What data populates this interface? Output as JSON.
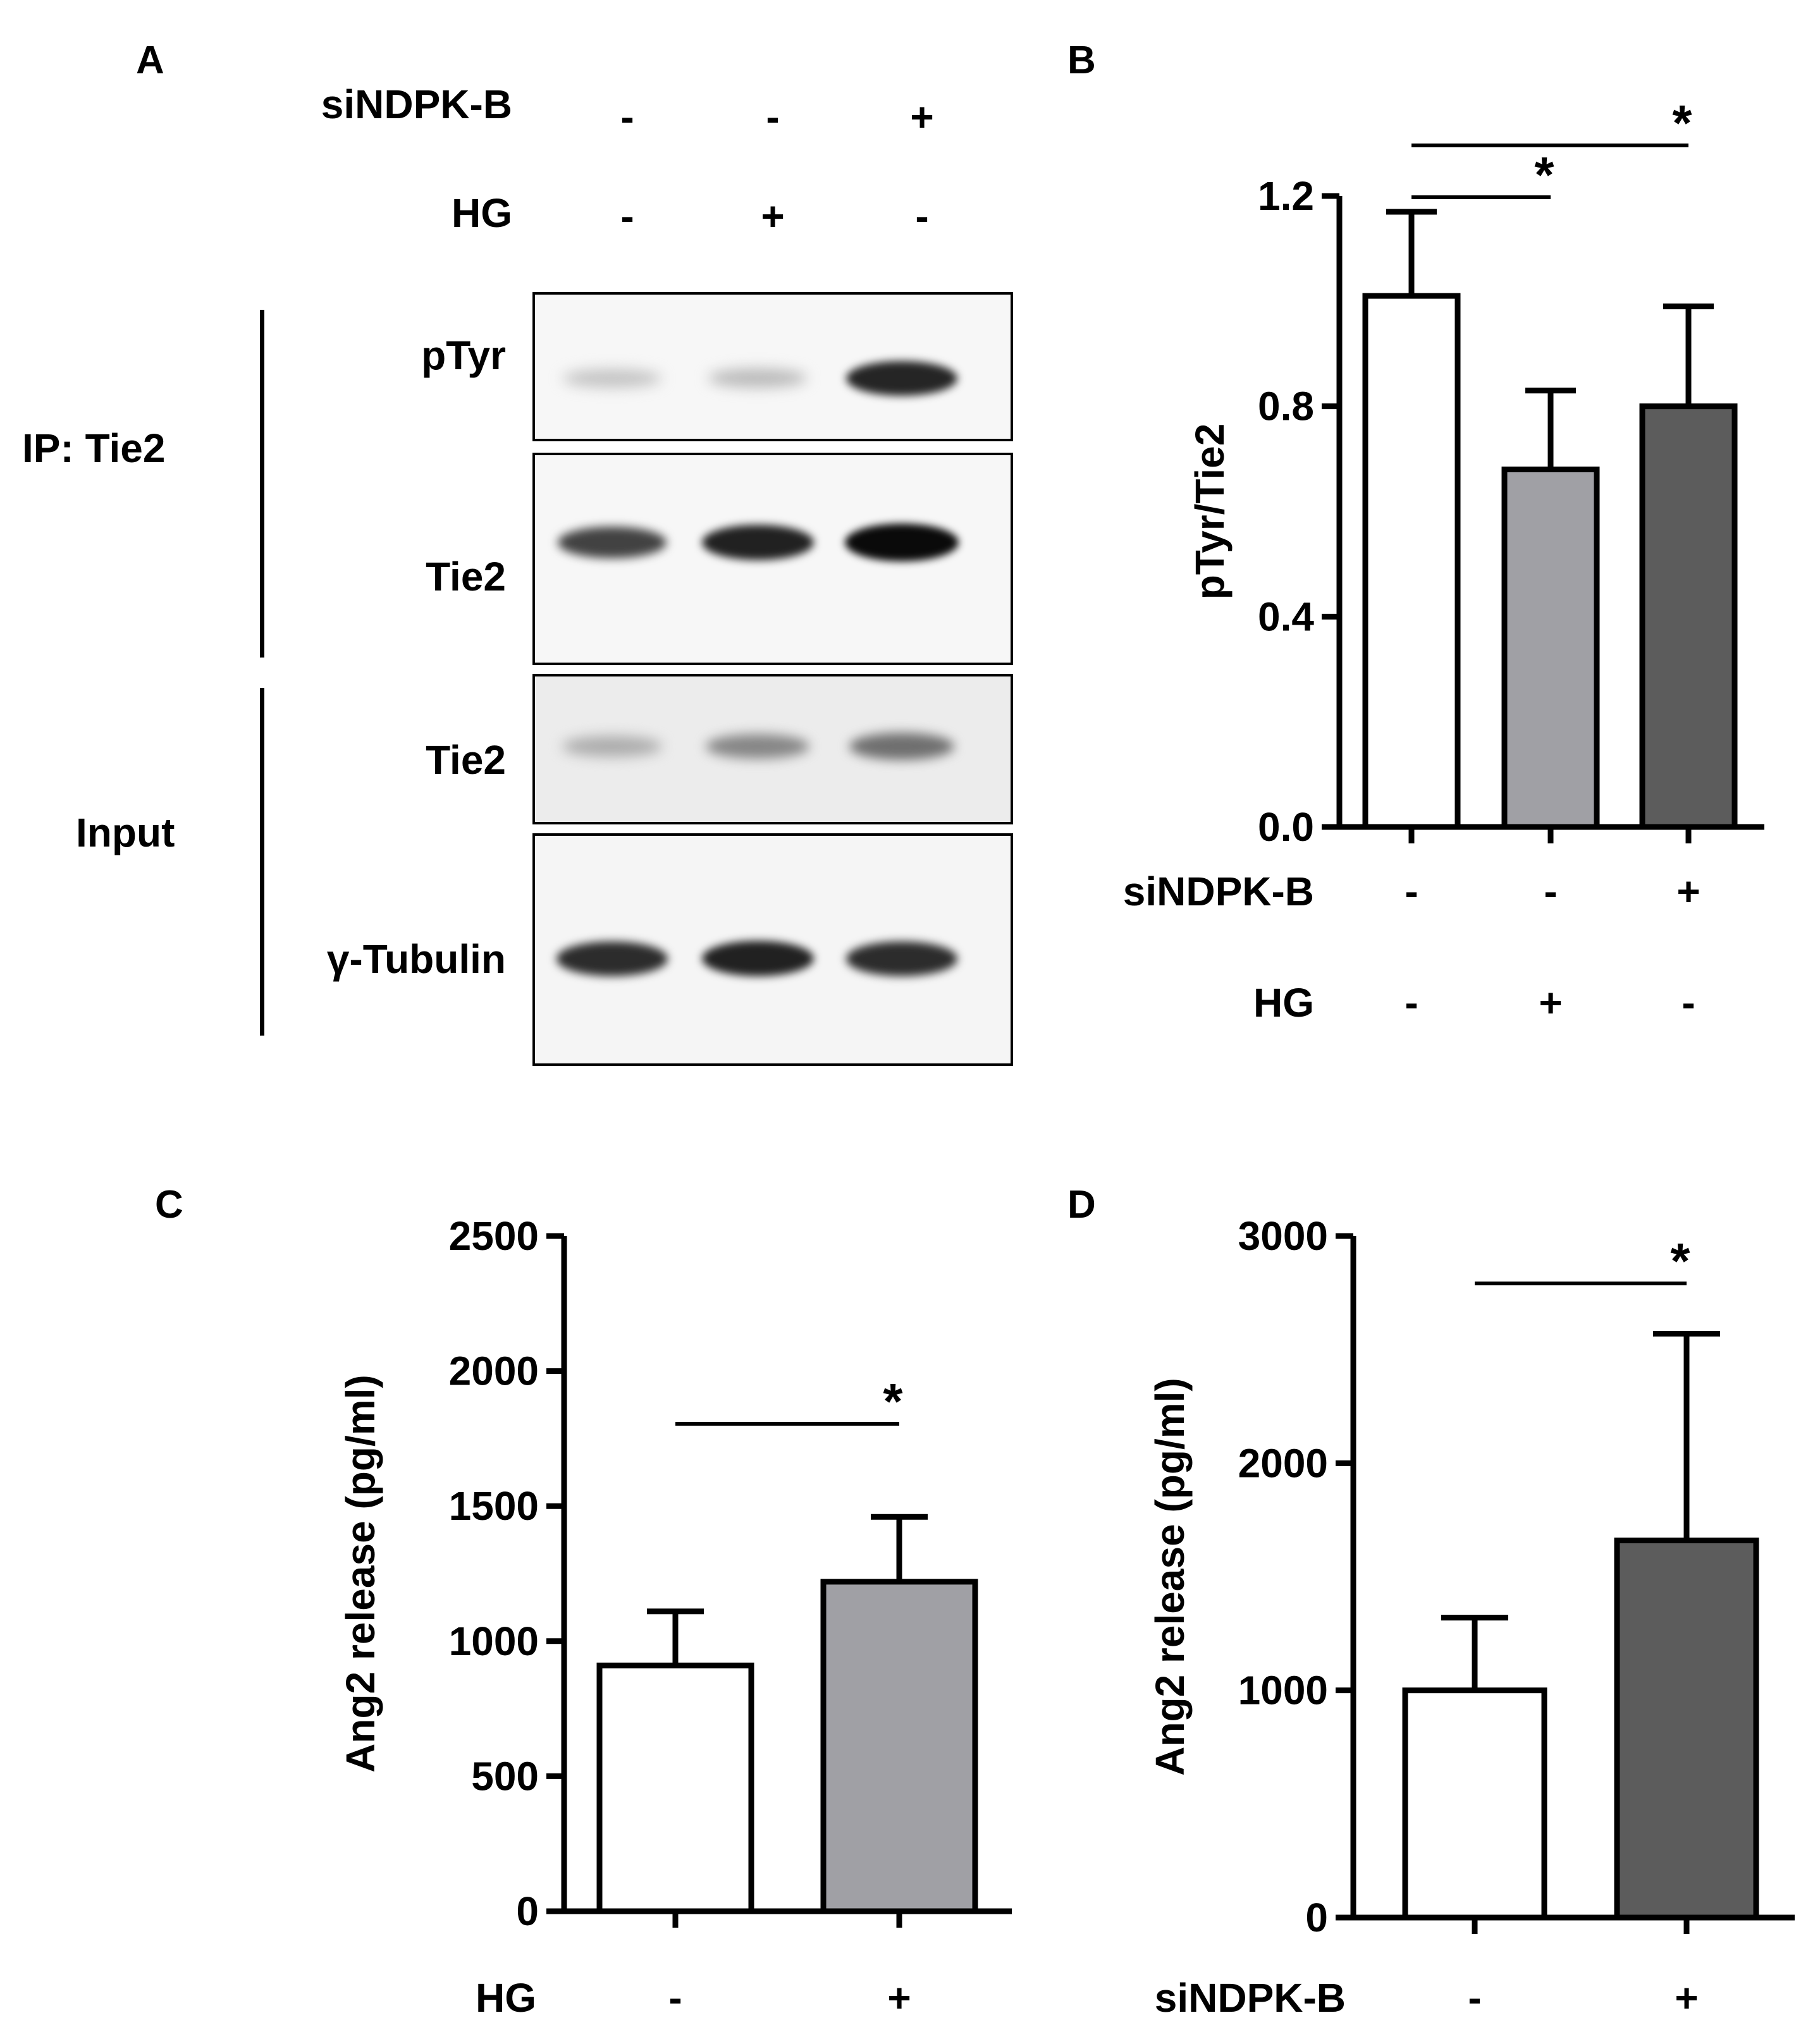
{
  "panel_labels": {
    "a": "A",
    "b": "B",
    "c": "C",
    "d": "D"
  },
  "blot": {
    "conditions": [
      {
        "label": "siNDPK-B",
        "signs": [
          "-",
          "-",
          "+"
        ]
      },
      {
        "label": "HG",
        "signs": [
          "-",
          "+",
          "-"
        ]
      }
    ],
    "groups": [
      "IP: Tie2",
      "Input"
    ],
    "rows": [
      {
        "label": "pTyr",
        "intensity": [
          0.18,
          0.22,
          0.88
        ]
      },
      {
        "label": "Tie2",
        "intensity": [
          0.75,
          0.9,
          1.0
        ]
      },
      {
        "label": "Tie2",
        "intensity": [
          0.28,
          0.45,
          0.55
        ]
      },
      {
        "label": "γ-Tubulin",
        "intensity": [
          0.85,
          0.9,
          0.85
        ]
      }
    ]
  },
  "chart_data": [
    {
      "panel": "B",
      "type": "bar",
      "ylabel": "pTyr/Tie2",
      "ylim": [
        0,
        1.2
      ],
      "yticks": [
        "0.0",
        "0.4",
        "0.8",
        "1.2"
      ],
      "values": [
        1.01,
        0.68,
        0.8
      ],
      "errors": [
        0.16,
        0.15,
        0.19
      ],
      "bar_colors": [
        "#ffffff",
        "#a0a0a5",
        "#5c5c5c"
      ],
      "xconditions": [
        {
          "label": "siNDPK-B",
          "signs": [
            "-",
            "-",
            "+"
          ]
        },
        {
          "label": "HG",
          "signs": [
            "-",
            "+",
            "-"
          ]
        }
      ],
      "significance": [
        {
          "from": 0,
          "to": 1,
          "mark": "*"
        },
        {
          "from": 0,
          "to": 2,
          "mark": "*"
        }
      ]
    },
    {
      "panel": "C",
      "type": "bar",
      "ylabel": "Ang2 release (pg/ml)",
      "ylim": [
        0,
        2500
      ],
      "yticks": [
        "0",
        "500",
        "1000",
        "1500",
        "2000",
        "2500"
      ],
      "values": [
        910,
        1220
      ],
      "errors": [
        200,
        240
      ],
      "bar_colors": [
        "#ffffff",
        "#a0a0a5"
      ],
      "xconditions": [
        {
          "label": "HG",
          "signs": [
            "-",
            "+"
          ]
        }
      ],
      "significance": [
        {
          "from": 0,
          "to": 1,
          "mark": "*"
        }
      ]
    },
    {
      "panel": "D",
      "type": "bar",
      "ylabel": "Ang2 release (pg/ml)",
      "ylim": [
        0,
        3000
      ],
      "yticks": [
        "0",
        "1000",
        "2000",
        "3000"
      ],
      "values": [
        1000,
        1660
      ],
      "errors": [
        320,
        910
      ],
      "bar_colors": [
        "#ffffff",
        "#5c5c5c"
      ],
      "xconditions": [
        {
          "label": "siNDPK-B",
          "signs": [
            "-",
            "+"
          ]
        }
      ],
      "significance": [
        {
          "from": 0,
          "to": 1,
          "mark": "*"
        }
      ]
    }
  ]
}
